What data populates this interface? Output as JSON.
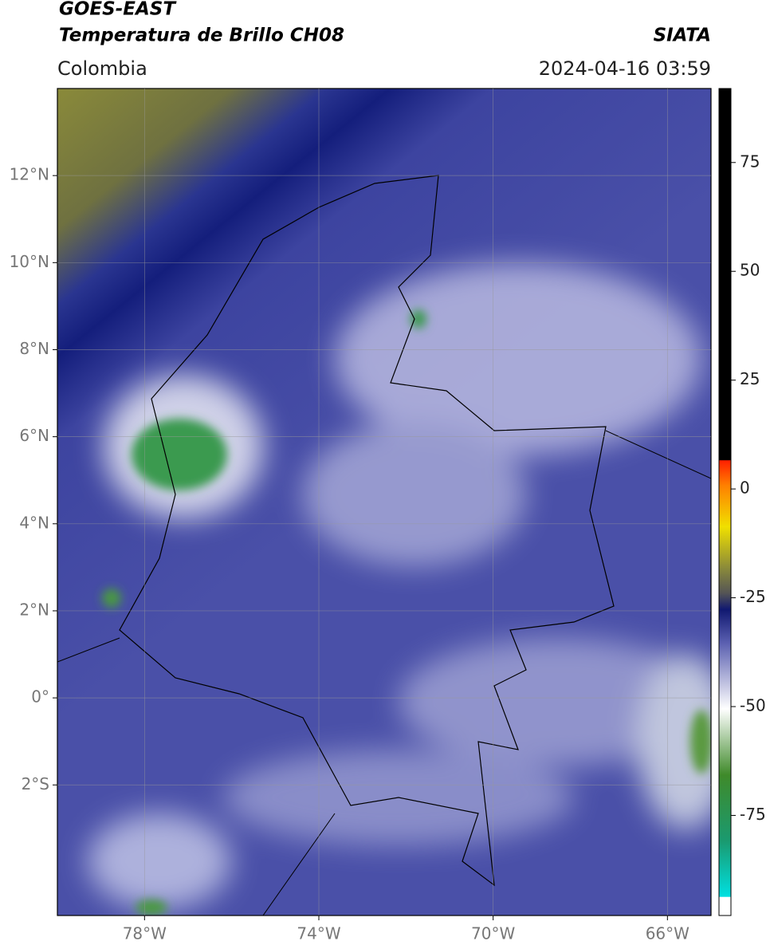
{
  "chart_data": {
    "type": "map",
    "title": "GOES-EAST",
    "subtitle": "Temperatura de Brillo CH08",
    "source": "SIATA",
    "region": "Colombia",
    "timestamp": "2024-04-16 03:59",
    "xlim": [
      -80,
      -65
    ],
    "xticks": [
      {
        "value": -78,
        "label": "78°W"
      },
      {
        "value": -74,
        "label": "74°W"
      },
      {
        "value": -70,
        "label": "70°W"
      },
      {
        "value": -66,
        "label": "66°W"
      }
    ],
    "ylim": [
      -5,
      14
    ],
    "yticks": [
      {
        "value": 12,
        "label": "12°N"
      },
      {
        "value": 10,
        "label": "10°N"
      },
      {
        "value": 8,
        "label": "8°N"
      },
      {
        "value": 6,
        "label": "6°N"
      },
      {
        "value": 4,
        "label": "4°N"
      },
      {
        "value": 2,
        "label": "2°N"
      },
      {
        "value": 0,
        "label": "0°"
      },
      {
        "value": -2,
        "label": "2°S"
      }
    ],
    "colorbar_lim": [
      -98,
      92
    ],
    "colorbar_ticks": [
      75,
      50,
      25,
      0,
      -25,
      -50,
      -75
    ],
    "grid": true
  }
}
